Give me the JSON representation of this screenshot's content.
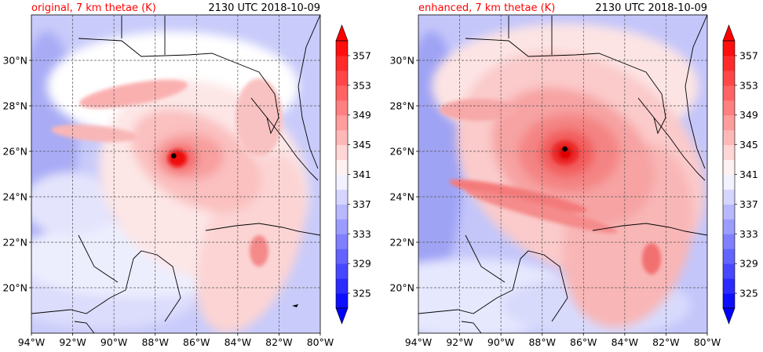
{
  "figure": {
    "panels": [
      {
        "title_left": "original, 7 km thetae (K)",
        "title_right": "2130 UTC 2018-10-09",
        "variant": "original",
        "storm_center": {
          "lon": -87.1,
          "lat": 25.8
        },
        "colorbar_ticks": [
          "325",
          "329",
          "333",
          "337",
          "341",
          "345",
          "349",
          "353",
          "357"
        ]
      },
      {
        "title_left": "enhanced, 7 km thetae (K)",
        "title_right": "2130 UTC 2018-10-09",
        "variant": "enhanced",
        "storm_center": {
          "lon": -86.9,
          "lat": 26.1
        },
        "colorbar_ticks": [
          "325",
          "329",
          "333",
          "337",
          "341",
          "345",
          "349",
          "353",
          "357"
        ]
      }
    ],
    "x_ticks": [
      "94°W",
      "92°W",
      "90°W",
      "88°W",
      "86°W",
      "84°W",
      "82°W",
      "80°W"
    ],
    "y_ticks": [
      "20°N",
      "22°N",
      "24°N",
      "26°N",
      "28°N",
      "30°N"
    ],
    "extent": {
      "lon_min": -94,
      "lon_max": -80,
      "lat_min": 18,
      "lat_max": 32
    },
    "colors": {
      "title_left": "#ff0000",
      "cold": "#0000ff",
      "warm": "#ff0000",
      "neutral": "#ffffff",
      "land_outline": "#000000",
      "grid": "#555555"
    },
    "colorbar_levels": [
      323,
      325,
      327,
      329,
      331,
      333,
      335,
      337,
      339,
      341,
      343,
      345,
      347,
      349,
      351,
      353,
      355,
      357,
      359
    ]
  }
}
